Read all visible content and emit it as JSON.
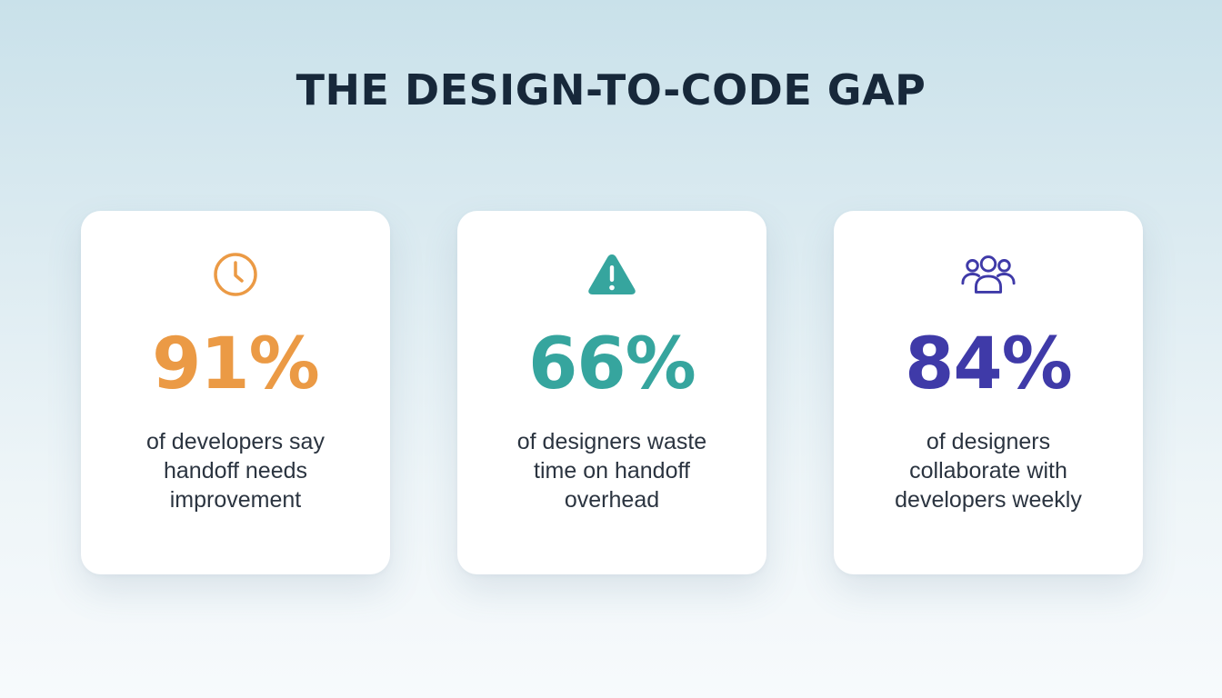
{
  "title": "THE DESIGN-TO-CODE GAP",
  "cards": [
    {
      "icon": "clock-icon",
      "color": "#eb9a45",
      "value": "91%",
      "lines": [
        "of developers say",
        "handoff needs",
        "improvement"
      ]
    },
    {
      "icon": "warning-icon",
      "color": "#36a59e",
      "value": "66%",
      "lines": [
        "of designers waste",
        "time on handoff",
        "overhead"
      ]
    },
    {
      "icon": "users-icon",
      "color": "#3f3aa8",
      "value": "84%",
      "lines": [
        "of designers",
        "collaborate with",
        "developers weekly"
      ]
    }
  ]
}
